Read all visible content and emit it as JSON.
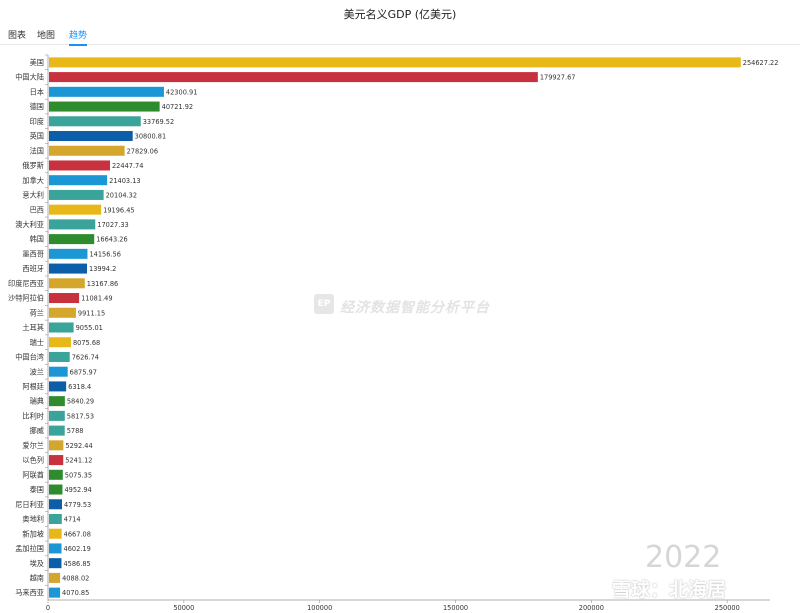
{
  "header": {
    "title": "美元名义GDP (亿美元)"
  },
  "tabs": [
    {
      "label": "图表",
      "active": false
    },
    {
      "label": "地图",
      "active": false
    },
    {
      "label": "趋势",
      "active": true
    }
  ],
  "watermark": {
    "logo": "EP",
    "text": "经济数据智能分析平台"
  },
  "year_label": "2022",
  "brand": "雪球：北海居",
  "chart_data": {
    "type": "bar",
    "orientation": "horizontal",
    "title": "美元名义GDP (亿美元)",
    "xlim": [
      0,
      255000
    ],
    "xticks": [
      0,
      50000,
      100000,
      150000,
      200000,
      250000
    ],
    "grid": false,
    "categories": [
      "美国",
      "中国大陆",
      "日本",
      "德国",
      "印度",
      "英国",
      "法国",
      "俄罗斯",
      "加拿大",
      "意大利",
      "巴西",
      "澳大利亚",
      "韩国",
      "墨西哥",
      "西班牙",
      "印度尼西亚",
      "沙特阿拉伯",
      "荷兰",
      "土耳其",
      "瑞士",
      "中国台湾",
      "波兰",
      "阿根廷",
      "瑞典",
      "比利时",
      "挪威",
      "爱尔兰",
      "以色列",
      "阿联酋",
      "泰国",
      "尼日利亚",
      "奥地利",
      "新加坡",
      "孟加拉国",
      "埃及",
      "越南",
      "马来西亚"
    ],
    "values": [
      254627.22,
      179927.67,
      42300.91,
      40721.92,
      33769.52,
      30800.81,
      27829.06,
      22447.74,
      21403.13,
      20104.32,
      19196.45,
      17027.33,
      16643.26,
      14156.56,
      13994.2,
      13167.86,
      11081.49,
      9911.15,
      9055.01,
      8075.68,
      7626.74,
      6875.97,
      6318.4,
      5840.29,
      5817.53,
      5788,
      5292.44,
      5241.12,
      5075.35,
      4952.94,
      4779.53,
      4714,
      4667.08,
      4602.19,
      4586.85,
      4088.02,
      4070.85
    ],
    "value_labels": [
      "254627.22",
      "179927.67",
      "42300.91",
      "40721.92",
      "33769.52",
      "30800.81",
      "27829.06",
      "22447.74",
      "21403.13",
      "20104.32",
      "19196.45",
      "17027.33",
      "16643.26",
      "14156.56",
      "13994.2",
      "13167.86",
      "11081.49",
      "9911.15",
      "9055.01",
      "8075.68",
      "7626.74",
      "6875.97",
      "6318.4",
      "5840.29",
      "5817.53",
      "5788",
      "5292.44",
      "5241.12",
      "5075.35",
      "4952.94",
      "4779.53",
      "4714",
      "4667.08",
      "4602.19",
      "4586.85",
      "4088.02",
      "4070.85"
    ],
    "colors": [
      "#e8b818",
      "#c8313e",
      "#1a97d4",
      "#2e8b2e",
      "#3aa39a",
      "#0d5ea8",
      "#d4a72c",
      "#c8313e",
      "#1a97d4",
      "#3aa39a",
      "#e8b818",
      "#3aa39a",
      "#2e8b2e",
      "#1a97d4",
      "#0d5ea8",
      "#d4a72c",
      "#c8313e",
      "#d4a72c",
      "#3aa39a",
      "#e8b818",
      "#3aa39a",
      "#1a97d4",
      "#0d5ea8",
      "#2e8b2e",
      "#3aa39a",
      "#3aa39a",
      "#d4a72c",
      "#c8313e",
      "#2e8b2e",
      "#2e8b2e",
      "#0d5ea8",
      "#3aa39a",
      "#e8b818",
      "#1a97d4",
      "#0d5ea8",
      "#d4a72c",
      "#1a97d4"
    ]
  }
}
